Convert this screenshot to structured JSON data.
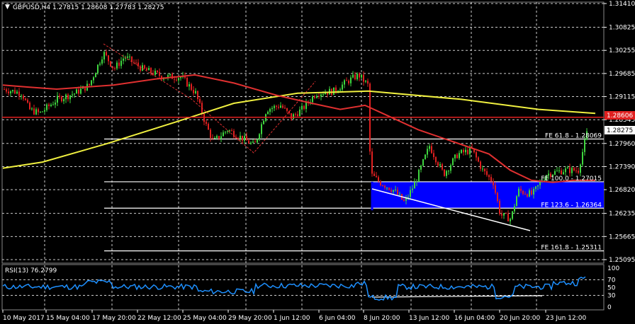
{
  "header": {
    "symbol_info": "GBPUSD,H4  1.27815 1.28608 1.27783 1.28275",
    "dropdown_icon": "triangle-down-icon"
  },
  "rsi_panel": {
    "label": "RSI(13) 76.2799",
    "levels": [
      "100",
      "70",
      "50",
      "30",
      "0"
    ]
  },
  "colors": {
    "background": "#000000",
    "grid": "#d0d0d0",
    "bull": "#3fd53f",
    "bear": "#e02020",
    "ma_fast": "#e03030",
    "ma_slow": "#f0f040",
    "fibo_zone": "#0000ff",
    "rsi_line": "#1e90ff",
    "price_tag_red": "#e02020"
  },
  "chart_data": {
    "type": "candlestick",
    "symbol": "GBPUSD",
    "timeframe": "H4",
    "ohlc_current": {
      "open": 1.27815,
      "high": 1.28608,
      "low": 1.27783,
      "close": 1.28275
    },
    "price_axis_ticks": [
      "1.31410",
      "1.30825",
      "1.30255",
      "1.29685",
      "1.29115",
      "1.28545",
      "1.27960",
      "1.27390",
      "1.26820",
      "1.26235",
      "1.25665",
      "1.25095"
    ],
    "price_tags": {
      "red_line": "1.28606",
      "current": "1.28275"
    },
    "time_axis_ticks": [
      "10 May 2017",
      "15 May 04:00",
      "17 May 20:00",
      "22 May 12:00",
      "25 May 04:00",
      "29 May 20:00",
      "1 Jun 12:00",
      "6 Jun 04:00",
      "8 Jun 20:00",
      "13 Jun 12:00",
      "16 Jun 04:00",
      "20 Jun 20:00",
      "23 Jun 12:00"
    ],
    "fibo_levels": [
      {
        "label": "FE 61.8 - 1.28069",
        "price": 1.28069
      },
      {
        "label": "FE 100.0 - 1.27015",
        "price": 1.27015
      },
      {
        "label": "FE 123.6 - 1.26364",
        "price": 1.26364
      },
      {
        "label": "FE 161.8 - 1.25311",
        "price": 1.25311
      }
    ],
    "horizontal_line_price": 1.28606,
    "rsi_value": 76.2799,
    "y_range": [
      1.25095,
      1.3141
    ]
  }
}
